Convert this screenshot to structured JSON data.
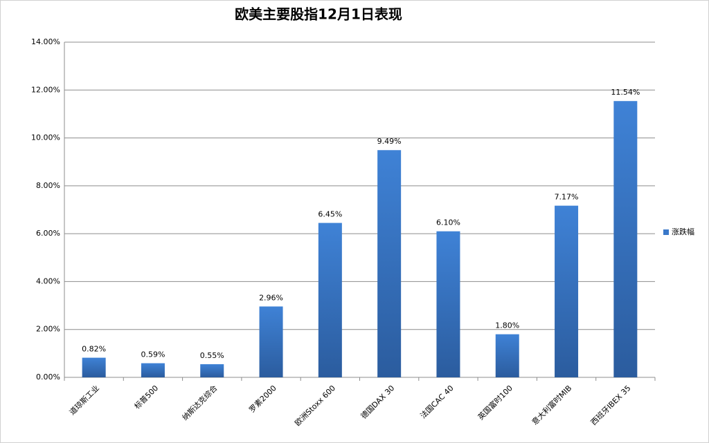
{
  "chart_data": {
    "type": "bar",
    "title": "欧美主要股指12月1日表现",
    "categories": [
      "道琼斯工业",
      "标普500",
      "纳斯达克综合",
      "罗素2000",
      "欧洲Stoxx 600",
      "德国DAX 30",
      "法国CAC 40",
      "英国富时100",
      "意大利富时MIB",
      "西班牙IBEX 35"
    ],
    "series": [
      {
        "name": "涨跌幅",
        "color": "#3a78c9",
        "values": [
          0.82,
          0.59,
          0.55,
          2.96,
          6.45,
          9.49,
          6.1,
          1.8,
          7.17,
          11.54
        ],
        "value_labels": [
          "0.82%",
          "0.59%",
          "0.55%",
          "2.96%",
          "6.45%",
          "9.49%",
          "6.10%",
          "1.80%",
          "7.17%",
          "11.54%"
        ]
      }
    ],
    "ylim": [
      0,
      14
    ],
    "yticks": [
      {
        "value": 0,
        "label": "0.00%"
      },
      {
        "value": 2,
        "label": "2.00%"
      },
      {
        "value": 4,
        "label": "4.00%"
      },
      {
        "value": 6,
        "label": "6.00%"
      },
      {
        "value": 8,
        "label": "8.00%"
      },
      {
        "value": 10,
        "label": "10.00%"
      },
      {
        "value": 12,
        "label": "12.00%"
      },
      {
        "value": 14,
        "label": "14.00%"
      }
    ],
    "grid": true,
    "legend": "right"
  }
}
